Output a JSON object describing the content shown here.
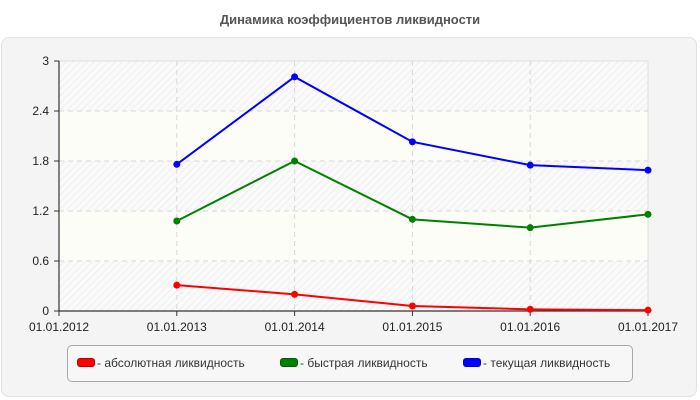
{
  "title": "Динамика коэффициентов ликвидности",
  "chart_data": {
    "type": "line",
    "title": "Динамика коэффициентов ликвидности",
    "xlabel": "",
    "ylabel": "",
    "x": [
      "01.01.2012",
      "01.01.2013",
      "01.01.2014",
      "01.01.2015",
      "01.01.2016",
      "01.01.2017"
    ],
    "y_ticks": [
      "0",
      "0.6",
      "1.2",
      "1.8",
      "2.4",
      "3"
    ],
    "ylim": [
      0,
      3
    ],
    "grid": true,
    "legend_position": "bottom",
    "series": [
      {
        "name": "- абсолютная ликвидность",
        "color": "#ff0000",
        "x": [
          "01.01.2013",
          "01.01.2014",
          "01.01.2015",
          "01.01.2016",
          "01.01.2017"
        ],
        "values": [
          0.31,
          0.2,
          0.06,
          0.02,
          0.01
        ]
      },
      {
        "name": "- быстрая ликвидность",
        "color": "#008000",
        "x": [
          "01.01.2013",
          "01.01.2014",
          "01.01.2015",
          "01.01.2016",
          "01.01.2017"
        ],
        "values": [
          1.08,
          1.8,
          1.1,
          1.0,
          1.16
        ]
      },
      {
        "name": "- текущая ликвидность",
        "color": "#0000ff",
        "x": [
          "01.01.2013",
          "01.01.2014",
          "01.01.2015",
          "01.01.2016",
          "01.01.2017"
        ],
        "values": [
          1.76,
          2.81,
          2.03,
          1.75,
          1.69
        ]
      }
    ]
  },
  "legend": {
    "items": [
      {
        "label": "- абсолютная ликвидность",
        "color": "#ff0000"
      },
      {
        "label": "- быстрая ликвидность",
        "color": "#008000"
      },
      {
        "label": "- текущая ликвидность",
        "color": "#0000ff"
      }
    ]
  }
}
